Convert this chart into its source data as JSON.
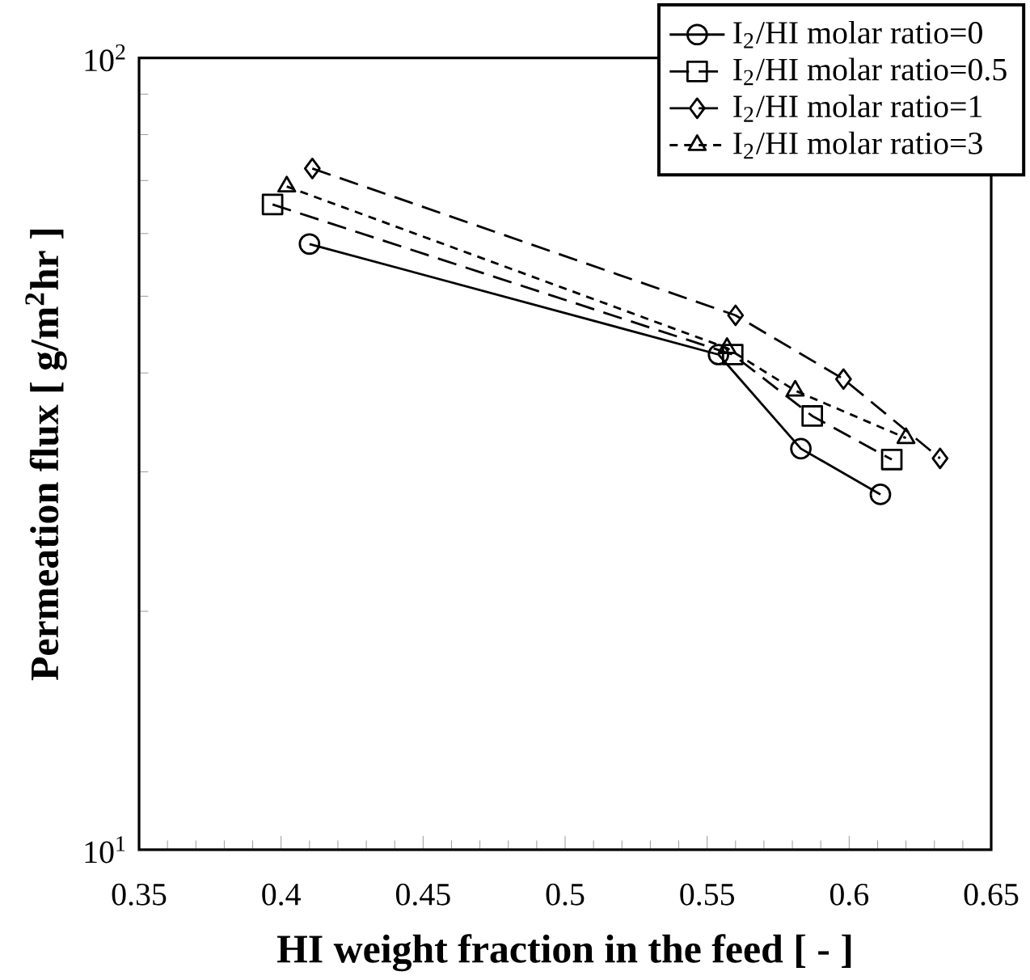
{
  "chart_data": {
    "type": "line",
    "xlabel": "HI weight fraction in the feed [ - ]",
    "ylabel": "Permeation flux [ g/m$^{2}$hr ]",
    "log": "y",
    "xlim": [
      0.35,
      0.65
    ],
    "ylim": [
      10,
      100
    ],
    "xticks": [
      0.35,
      0.4,
      0.45,
      0.5,
      0.55,
      0.6,
      0.65
    ],
    "yticks": [
      {
        "value": 10,
        "label": "10$^{1}$"
      },
      {
        "value": 100,
        "label": "10$^{2}$"
      }
    ],
    "grid": false,
    "legend": "top right",
    "series": [
      {
        "name": "I$_{2}$/HI molar ratio=0",
        "color": "#000000",
        "marker": "circle",
        "line_style": "solid",
        "x": [
          0.41,
          0.554,
          0.583,
          0.611
        ],
        "values": [
          58.2,
          42.2,
          32.1,
          28.1
        ]
      },
      {
        "name": "I$_{2}$/HI molar ratio=0.5",
        "color": "#000000",
        "marker": "square",
        "line_style": "dashed",
        "x": [
          0.397,
          0.559,
          0.587,
          0.615
        ],
        "values": [
          65.3,
          42.2,
          35.3,
          31.1
        ]
      },
      {
        "name": "I$_{2}$/HI molar ratio=1",
        "color": "#000000",
        "marker": "diamond",
        "line_style": "dashed",
        "x": [
          0.411,
          0.56,
          0.598,
          0.632
        ],
        "values": [
          72.5,
          47.3,
          39.3,
          31.2
        ]
      },
      {
        "name": "I$_{2}$/HI molar ratio=3",
        "color": "#000000",
        "marker": "triangle",
        "line_style": "dashed",
        "x": [
          0.402,
          0.557,
          0.581,
          0.62
        ],
        "values": [
          68.8,
          43.0,
          38.0,
          33.1
        ]
      }
    ]
  }
}
